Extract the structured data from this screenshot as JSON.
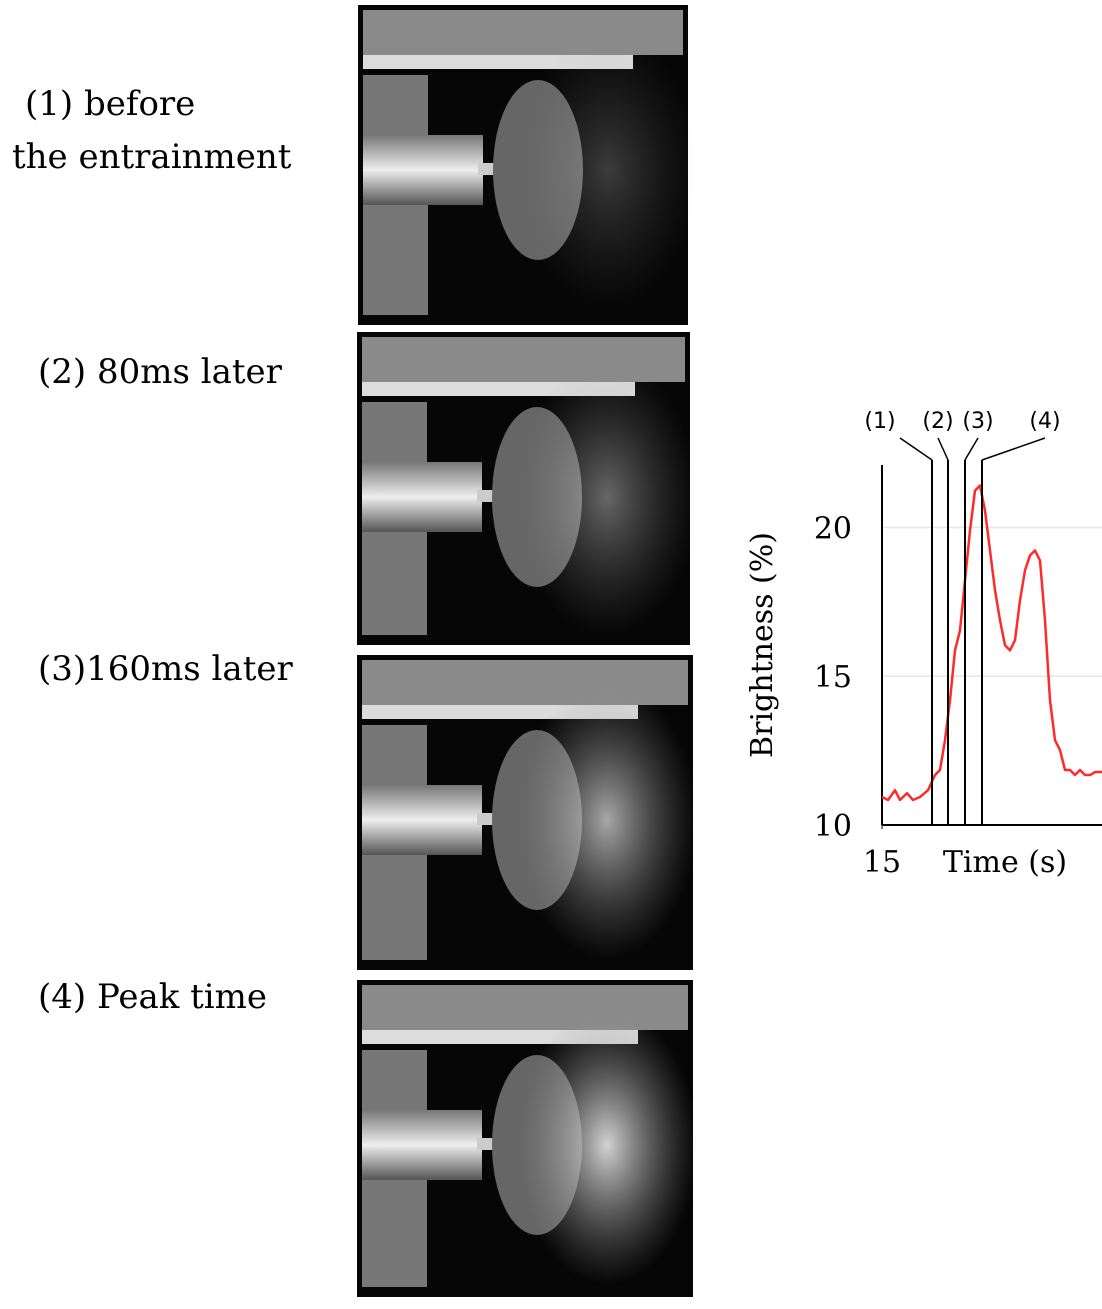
{
  "panels": [
    {
      "label": [
        "(1) before",
        "the entrainment"
      ]
    },
    {
      "label": [
        "(2) 80ms later"
      ]
    },
    {
      "label": [
        "(3)160ms later"
      ]
    },
    {
      "label": [
        "(4) Peak time"
      ]
    }
  ],
  "chart_data": {
    "type": "line",
    "y_label": "Brightness (%)",
    "x_label": "Time (s)",
    "x": [
      15,
      15.06,
      15.13,
      15.18,
      15.25,
      15.31,
      15.38,
      15.46,
      15.53,
      15.58,
      15.63,
      15.68,
      15.73,
      15.78,
      15.83,
      15.88,
      15.93,
      15.98,
      16.03,
      16.08,
      16.13,
      16.18,
      16.23,
      16.28,
      16.33,
      16.38,
      16.43,
      16.48,
      16.53,
      16.58,
      16.63,
      16.68,
      16.73,
      16.78,
      16.83,
      16.88,
      16.93,
      16.98,
      17.03,
      17.08,
      17.13,
      17.2
    ],
    "series": [
      {
        "color": "#ff2a2a",
        "values": [
          10.94,
          10.84,
          11.17,
          10.84,
          11.07,
          10.84,
          10.94,
          11.17,
          11.68,
          11.85,
          12.85,
          14.19,
          15.87,
          16.54,
          18.22,
          19.9,
          21.24,
          21.41,
          20.57,
          19.23,
          17.89,
          16.88,
          16.04,
          15.87,
          16.21,
          17.55,
          18.56,
          19.06,
          19.23,
          18.89,
          16.88,
          14.19,
          12.85,
          12.52,
          11.85,
          11.85,
          11.68,
          11.85,
          11.68,
          11.68,
          11.78,
          11.78
        ]
      }
    ],
    "xlim": [
      15,
      17.2
    ],
    "xticks": [
      15
    ],
    "ylim": [
      10,
      22.1
    ],
    "yticks": [
      10,
      15,
      20
    ],
    "grid": true,
    "markers": [
      {
        "label": "(1)",
        "x": 15.5
      },
      {
        "label": "(2)",
        "x": 15.66
      },
      {
        "label": "(3)",
        "x": 15.83
      },
      {
        "label": "(4)",
        "x": 16.0
      }
    ]
  }
}
